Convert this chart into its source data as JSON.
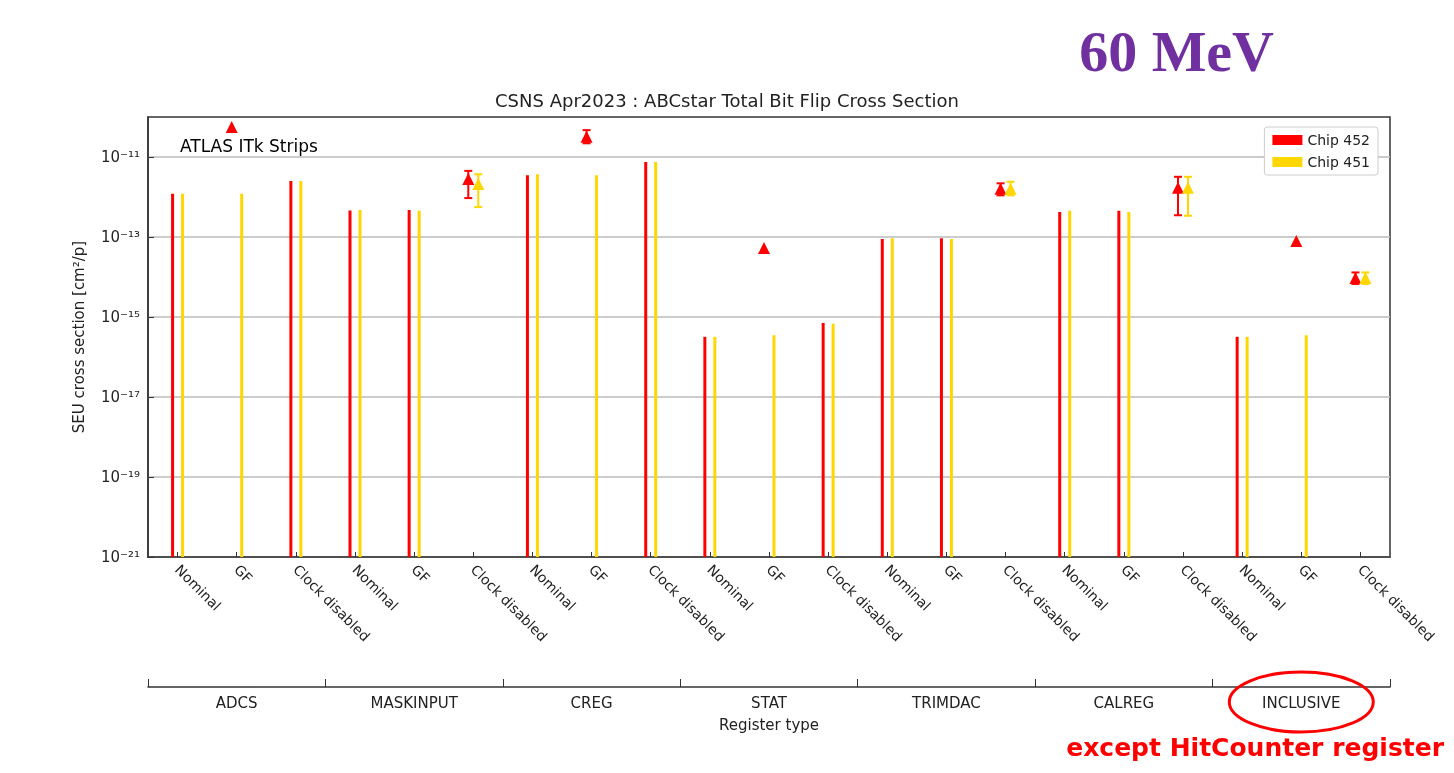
{
  "chart_data": {
    "type": "bar",
    "title": "CSNS Apr2023 : ABCstar Total Bit Flip Cross Section",
    "xlabel": "Register type",
    "ylabel": "SEU cross section [cm²/p]",
    "categories": [
      "Nominal",
      "GF",
      "Clock disabled",
      "Nominal",
      "GF",
      "Clock disabled",
      "Nominal",
      "GF",
      "Clock disabled",
      "Nominal",
      "GF",
      "Clock disabled",
      "Nominal",
      "GF",
      "Clock disabled",
      "Nominal",
      "GF",
      "Clock disabled",
      "Nominal",
      "GF",
      "Clock disabled"
    ],
    "annotations": [
      "ADCS",
      "MASKINPUT",
      "CREG",
      "STAT",
      "TRIMDAC",
      "CALREG",
      "INCLUSIVE",
      "ATLAS ITk Strips",
      "60 MeV",
      "except HitCounter register"
    ],
    "log": true,
    "grid": "y",
    "legend": "top right",
    "marker": "triangle",
    "ylim": [
      1e-21,
      1e-10
    ],
    "yticks": [
      {
        "value": 1e-21,
        "label": "10⁻²¹"
      },
      {
        "value": 1e-19,
        "label": "10⁻¹⁹"
      },
      {
        "value": 1e-17,
        "label": "10⁻¹⁷"
      },
      {
        "value": 1e-15,
        "label": "10⁻¹⁵"
      },
      {
        "value": 1e-13,
        "label": "10⁻¹³"
      },
      {
        "value": 1e-11,
        "label": "10⁻¹¹"
      }
    ],
    "series": [
      {
        "name": "Chip 452",
        "color": "#ff0000",
        "values": [
          1.2e-12,
          null,
          2.5e-12,
          4.6e-13,
          4.7e-13,
          null,
          3.5e-12,
          null,
          7.5e-12,
          3.2e-16,
          null,
          7.1e-16,
          8.9e-14,
          9.3e-14,
          null,
          4.2e-13,
          4.5e-13,
          null,
          3.2e-16,
          null,
          null
        ]
      },
      {
        "name": "Chip 451",
        "color": "#ffd700",
        "values": [
          1.2e-12,
          1.2e-12,
          2.5e-12,
          4.7e-13,
          4.5e-13,
          null,
          3.7e-12,
          3.5e-12,
          7.5e-12,
          3.2e-16,
          3.5e-16,
          6.8e-16,
          9.3e-14,
          8.9e-14,
          null,
          4.5e-13,
          4.2e-13,
          null,
          3.2e-16,
          3.5e-16,
          null
        ]
      },
      {
        "type": "scatter",
        "color": "#ff0000",
        "values": [
          null,
          5.6e-11,
          null,
          null,
          null,
          2.8e-12,
          null,
          3.2e-11,
          null,
          null,
          5.3e-14,
          null,
          null,
          null,
          1.6e-12,
          null,
          null,
          1.7e-12,
          null,
          7.9e-14,
          9.4e-15
        ],
        "errors": [
          null,
          null,
          null,
          null,
          null,
          [
            9.4e-13,
            4.5e-12
          ],
          null,
          [
            2.2e-11,
            4.7e-11
          ],
          null,
          null,
          null,
          null,
          null,
          null,
          [
            1.1e-12,
            2.2e-12
          ],
          null,
          null,
          [
            3.5e-13,
            3.2e-12
          ],
          null,
          null,
          [
            6.7e-15,
            1.3e-14
          ]
        ]
      },
      {
        "type": "scatter",
        "color": "#ffd700",
        "values": [
          null,
          null,
          null,
          null,
          null,
          2.1e-12,
          null,
          null,
          null,
          null,
          null,
          null,
          null,
          null,
          1.6e-12,
          null,
          null,
          1.7e-12,
          null,
          null,
          9.4e-15
        ],
        "errors": [
          null,
          null,
          null,
          null,
          null,
          [
            5.6e-13,
            3.7e-12
          ],
          null,
          null,
          null,
          null,
          null,
          null,
          null,
          null,
          [
            1.1e-12,
            2.4e-12
          ],
          null,
          null,
          [
            3.4e-13,
            3.2e-12
          ],
          null,
          null,
          [
            6.7e-15,
            1.3e-14
          ]
        ]
      }
    ]
  }
}
